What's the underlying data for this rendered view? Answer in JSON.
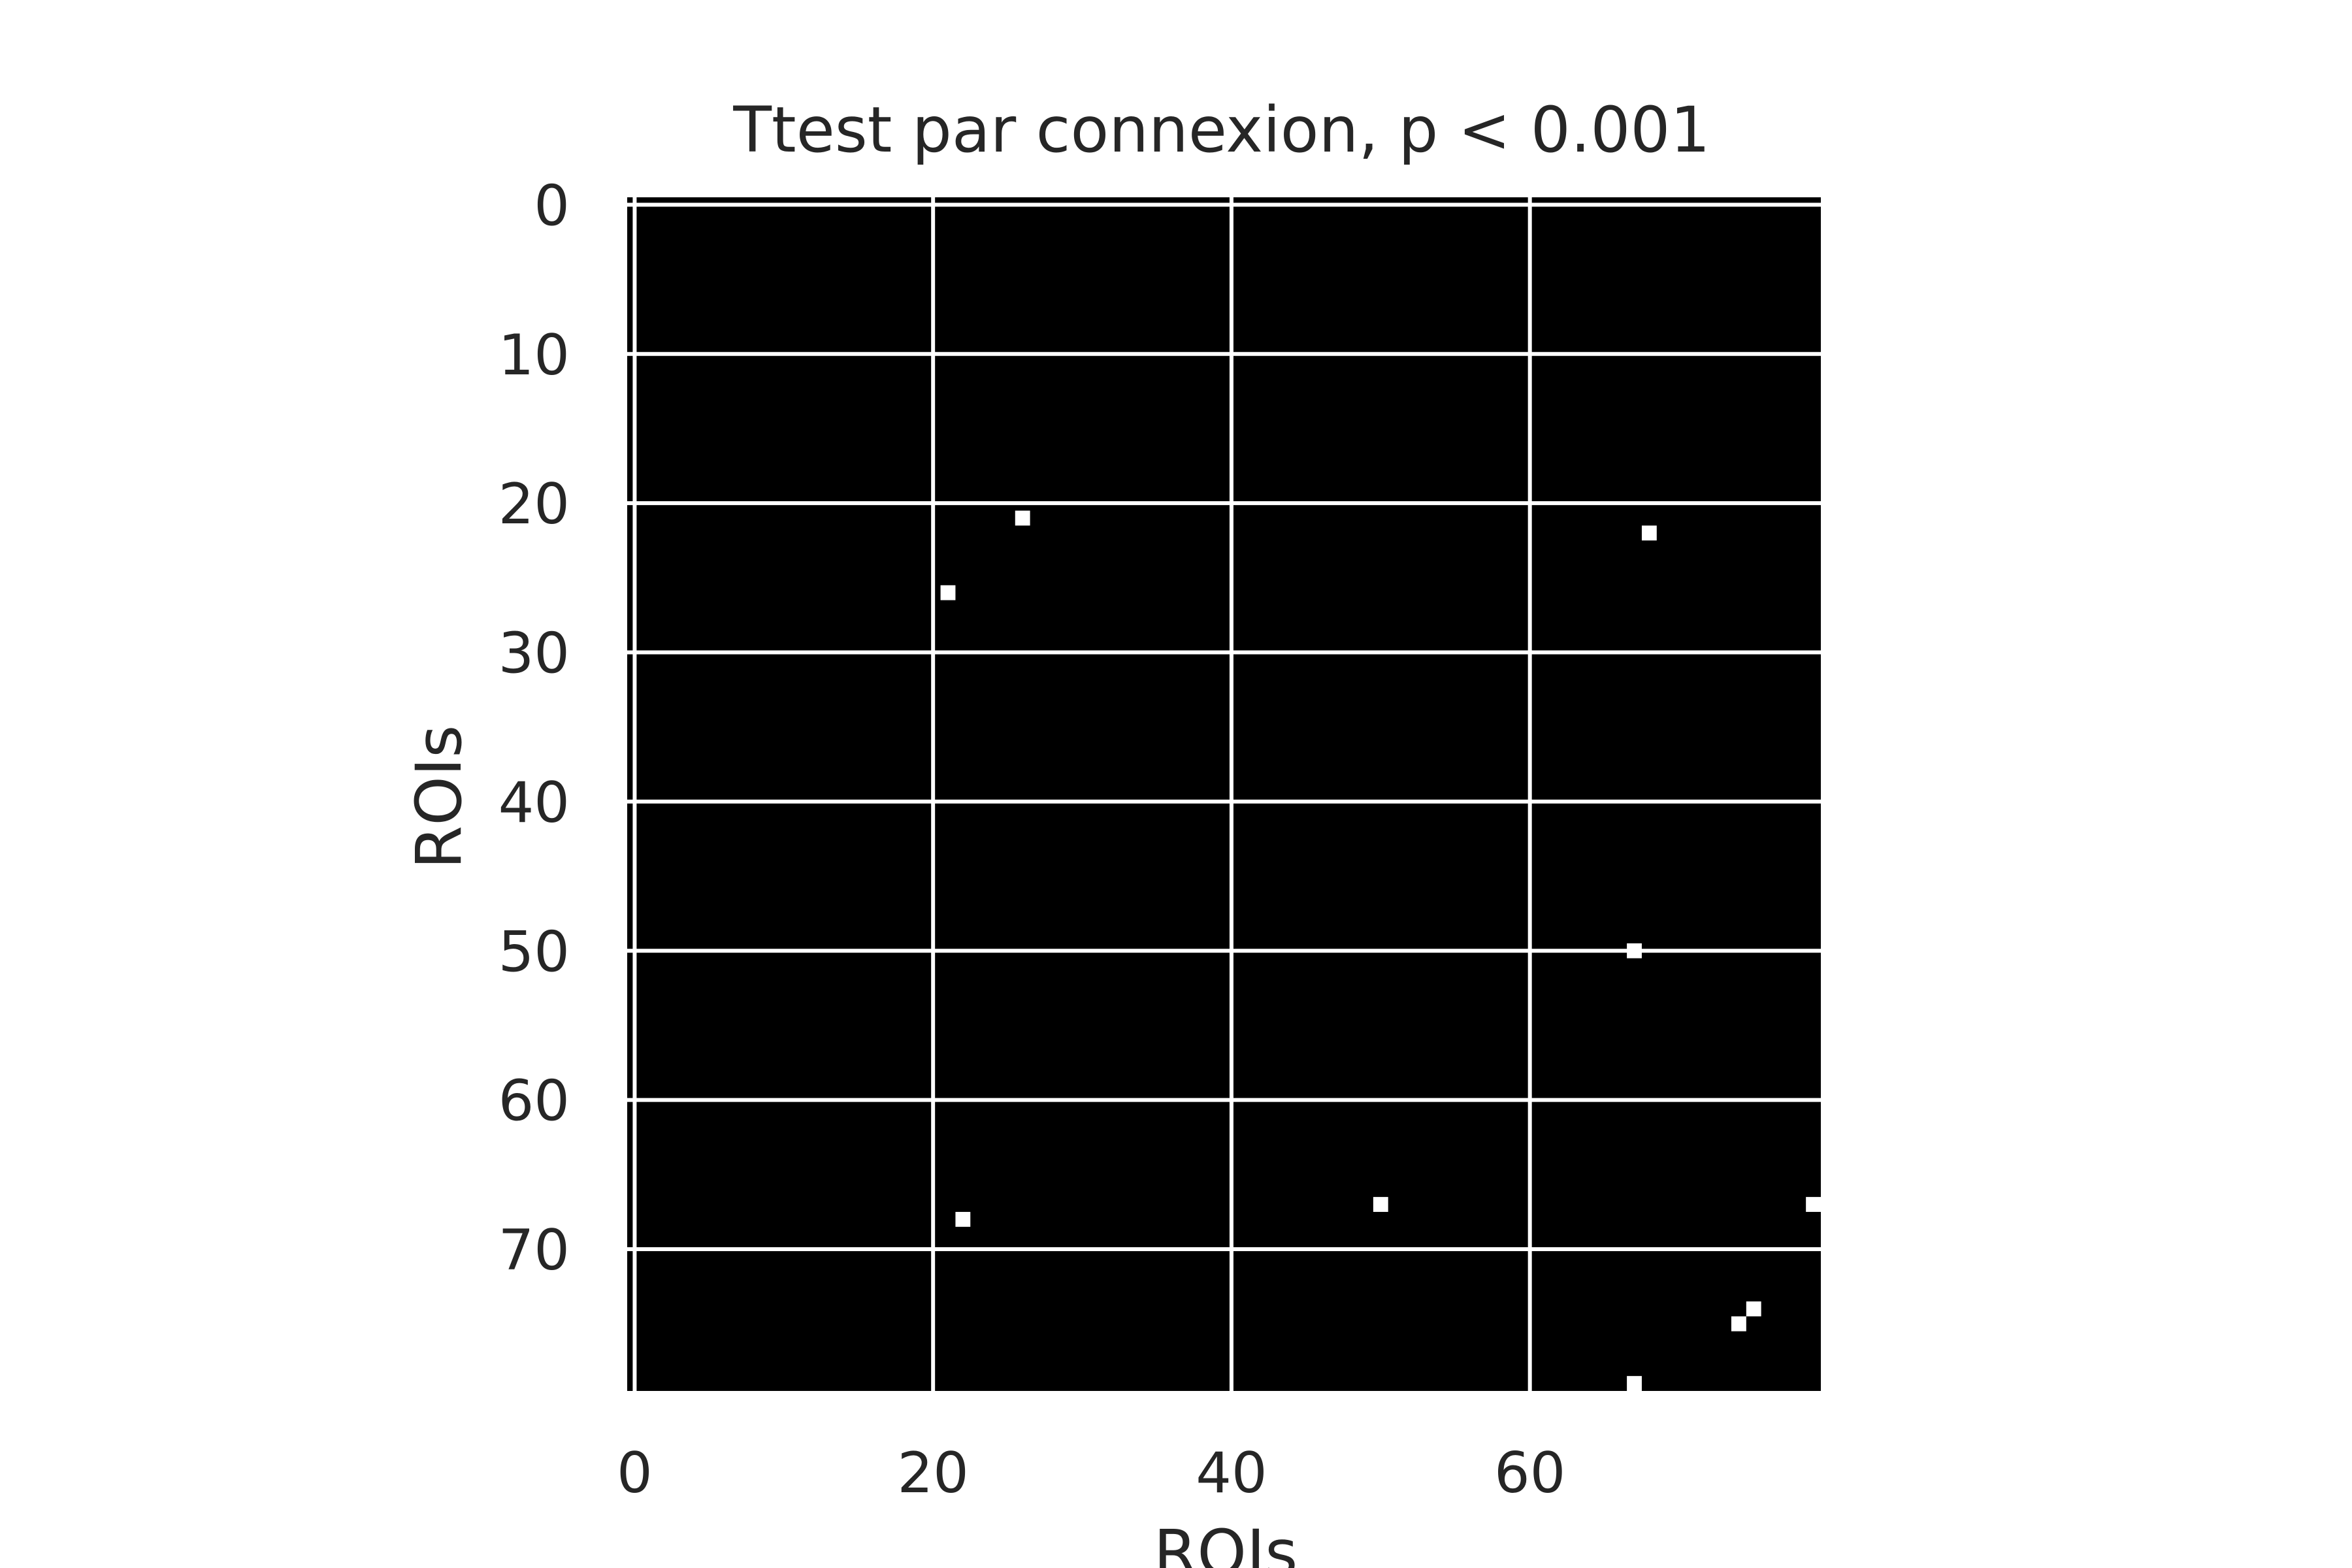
{
  "chart_data": {
    "type": "heatmap",
    "title": "Ttest par connexion, p < 0.001",
    "xlabel": "ROIs",
    "ylabel": "ROIs",
    "n_rows": 80,
    "n_cols": 80,
    "xlim": [
      -0.5,
      79.5
    ],
    "ylim": [
      79.5,
      -0.5
    ],
    "x_ticks": [
      0,
      20,
      40,
      60
    ],
    "y_ticks": [
      0,
      10,
      20,
      30,
      40,
      50,
      60,
      70
    ],
    "x_tick_labels": [
      "0",
      "20",
      "40",
      "60"
    ],
    "y_tick_labels": [
      "0",
      "10",
      "20",
      "30",
      "40",
      "50",
      "60",
      "70"
    ],
    "grid": true,
    "grid_color": "#ffffff",
    "background_value": 0,
    "background_color": "#000000",
    "highlight_color": "#ffffff",
    "significant_cells": [
      {
        "row": 21,
        "col": 26
      },
      {
        "row": 22,
        "col": 68
      },
      {
        "row": 26,
        "col": 21
      },
      {
        "row": 50,
        "col": 67
      },
      {
        "row": 67,
        "col": 50
      },
      {
        "row": 67,
        "col": 79
      },
      {
        "row": 68,
        "col": 22
      },
      {
        "row": 74,
        "col": 75
      },
      {
        "row": 75,
        "col": 74
      },
      {
        "row": 79,
        "col": 67
      }
    ]
  }
}
